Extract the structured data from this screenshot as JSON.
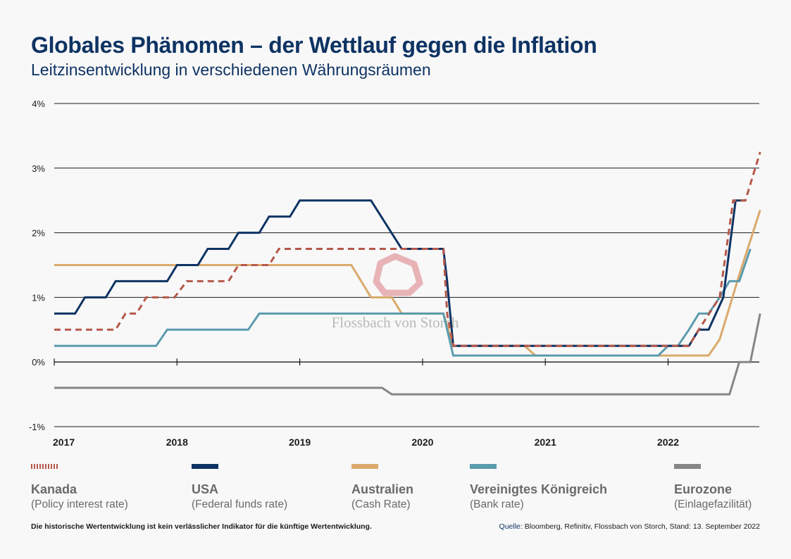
{
  "header": {
    "title": "Globales Phänomen – der Wettlauf gegen die Inflation",
    "subtitle": "Leitzinsentwicklung in verschiedenen Währungsräumen"
  },
  "watermark": {
    "text": "Flossbach von Storch",
    "logo_color": "#e8b3b7"
  },
  "footer": {
    "disclaimer": "Die historische Wertentwicklung ist kein verlässlicher Indikator für die künftige Wertentwicklung.",
    "source_label": "Quelle:",
    "source_text": "Bloomberg, Refinitiv, Flossbach von Storch, Stand: 13. September 2022"
  },
  "chart_data": {
    "type": "line",
    "title": "Leitzinsentwicklung in verschiedenen Währungsräumen",
    "xlabel": "",
    "ylabel": "",
    "xlim": [
      2017.0,
      2022.75
    ],
    "ylim": [
      -1,
      4
    ],
    "y_ticks": [
      -1,
      0,
      1,
      2,
      3,
      4
    ],
    "y_tick_labels": [
      "-1%",
      "0%",
      "1%",
      "2%",
      "3%",
      "4%"
    ],
    "x_ticks": [
      2017,
      2018,
      2019,
      2020,
      2021,
      2022
    ],
    "x_tick_labels": [
      "2017",
      "2018",
      "2019",
      "2020",
      "2021",
      "2022"
    ],
    "grid": true,
    "legend_position": "bottom",
    "series": [
      {
        "name": "Kanada",
        "description": "(Policy interest rate)",
        "color": "#b5584a",
        "dashed": true,
        "x": [
          2017.0,
          2017.5,
          2017.58,
          2017.67,
          2017.75,
          2017.83,
          2017.98,
          2018.08,
          2018.42,
          2018.5,
          2018.75,
          2018.83,
          2019.5,
          2020.17,
          2020.2,
          2020.25,
          2021.0,
          2021.75,
          2022.17,
          2022.25,
          2022.42,
          2022.53,
          2022.63,
          2022.75
        ],
        "values": [
          0.5,
          0.5,
          0.75,
          0.75,
          1.0,
          1.0,
          1.0,
          1.25,
          1.25,
          1.5,
          1.5,
          1.75,
          1.75,
          1.75,
          0.75,
          0.25,
          0.25,
          0.25,
          0.25,
          0.5,
          1.0,
          2.5,
          2.5,
          3.25
        ]
      },
      {
        "name": "USA",
        "description": "(Federal funds rate)",
        "color": "#0e3363",
        "dashed": false,
        "x": [
          2017.0,
          2017.17,
          2017.25,
          2017.42,
          2017.5,
          2017.92,
          2018.0,
          2018.17,
          2018.25,
          2018.42,
          2018.5,
          2018.67,
          2018.75,
          2018.92,
          2019.0,
          2019.58,
          2019.83,
          2020.17,
          2020.2,
          2020.25,
          2021.0,
          2022.0,
          2022.17,
          2022.25,
          2022.33,
          2022.45,
          2022.55,
          2022.63
        ],
        "values": [
          0.75,
          0.75,
          1.0,
          1.0,
          1.25,
          1.25,
          1.5,
          1.5,
          1.75,
          1.75,
          2.0,
          2.0,
          2.25,
          2.25,
          2.5,
          2.5,
          1.75,
          1.75,
          1.25,
          0.25,
          0.25,
          0.25,
          0.25,
          0.5,
          0.5,
          1.0,
          2.5,
          2.5
        ]
      },
      {
        "name": "Australien",
        "description": "(Cash Rate)",
        "color": "#d9aa6b",
        "dashed": false,
        "x": [
          2017.0,
          2019.42,
          2019.5,
          2019.58,
          2019.75,
          2019.83,
          2020.17,
          2020.25,
          2020.83,
          2020.92,
          2022.33,
          2022.42,
          2022.5,
          2022.58,
          2022.75
        ],
        "values": [
          1.5,
          1.5,
          1.25,
          1.0,
          1.0,
          0.75,
          0.75,
          0.25,
          0.25,
          0.1,
          0.1,
          0.35,
          0.85,
          1.35,
          2.35
        ]
      },
      {
        "name": "Vereinigtes Königreich",
        "description": "(Bank rate)",
        "color": "#5b9bad",
        "dashed": false,
        "x": [
          2017.0,
          2017.83,
          2017.92,
          2018.58,
          2018.67,
          2020.17,
          2020.25,
          2021.92,
          2022.0,
          2022.08,
          2022.17,
          2022.25,
          2022.33,
          2022.42,
          2022.5,
          2022.58,
          2022.67
        ],
        "values": [
          0.25,
          0.25,
          0.5,
          0.5,
          0.75,
          0.75,
          0.1,
          0.1,
          0.25,
          0.25,
          0.5,
          0.75,
          0.75,
          1.0,
          1.25,
          1.25,
          1.75
        ]
      },
      {
        "name": "Eurozone",
        "description": "(Einlagefazilität)",
        "color": "#868686",
        "dashed": false,
        "x": [
          2017.0,
          2019.67,
          2019.75,
          2022.5,
          2022.58,
          2022.67,
          2022.75
        ],
        "values": [
          -0.4,
          -0.4,
          -0.5,
          -0.5,
          0.0,
          0.0,
          0.75
        ]
      }
    ]
  }
}
